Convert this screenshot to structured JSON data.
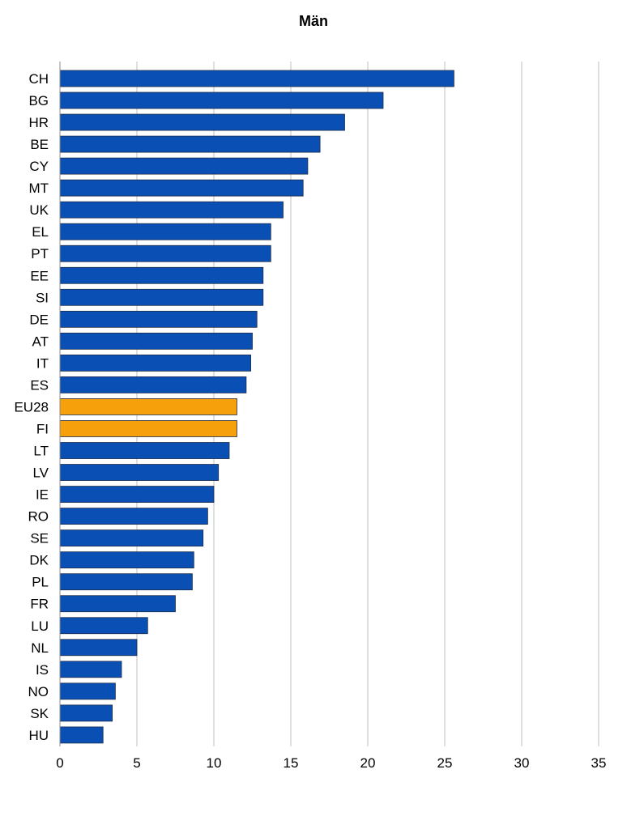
{
  "chart_data": {
    "type": "bar",
    "orientation": "horizontal",
    "title": "Män",
    "xlabel": "",
    "ylabel": "",
    "xlim": [
      0,
      35
    ],
    "x_ticks": [
      0,
      5,
      10,
      15,
      20,
      25,
      30,
      35
    ],
    "grid": "vertical",
    "legend": "none",
    "categories": [
      "CH",
      "BG",
      "HR",
      "BE",
      "CY",
      "MT",
      "UK",
      "EL",
      "PT",
      "EE",
      "SI",
      "DE",
      "AT",
      "IT",
      "ES",
      "EU28",
      "FI",
      "LT",
      "LV",
      "IE",
      "RO",
      "SE",
      "DK",
      "PL",
      "FR",
      "LU",
      "NL",
      "IS",
      "NO",
      "SK",
      "HU"
    ],
    "values": [
      25.6,
      21.0,
      18.5,
      16.9,
      16.1,
      15.8,
      14.5,
      13.7,
      13.7,
      13.2,
      13.2,
      12.8,
      12.5,
      12.4,
      12.1,
      11.5,
      11.5,
      11.0,
      10.3,
      10.0,
      9.6,
      9.3,
      8.7,
      8.6,
      7.5,
      5.7,
      5.0,
      4.0,
      3.6,
      3.4,
      2.8
    ],
    "highlight": [
      "EU28",
      "FI"
    ],
    "colors": {
      "bar": "#0A4FB4",
      "bar_highlight": "#F6A00C",
      "bar_border": "#1F2D4A",
      "grid": "#BFBFBF",
      "axis": "#8C8C8C"
    }
  }
}
